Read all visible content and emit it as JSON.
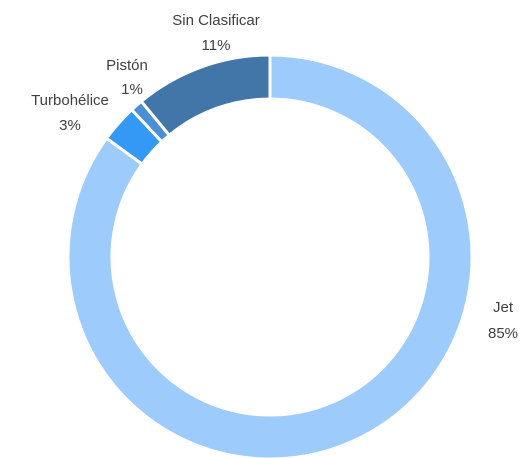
{
  "chart_data": {
    "type": "donut",
    "categories": [
      "Jet",
      "Turbohélice",
      "Pistón",
      "Sin Clasificar"
    ],
    "values": [
      85,
      3,
      1,
      11
    ],
    "value_labels": [
      "85%",
      "3%",
      "1%",
      "11%"
    ],
    "colors": [
      "#9dcbfc",
      "#3399f5",
      "#4a8fd6",
      "#4275a8"
    ]
  }
}
